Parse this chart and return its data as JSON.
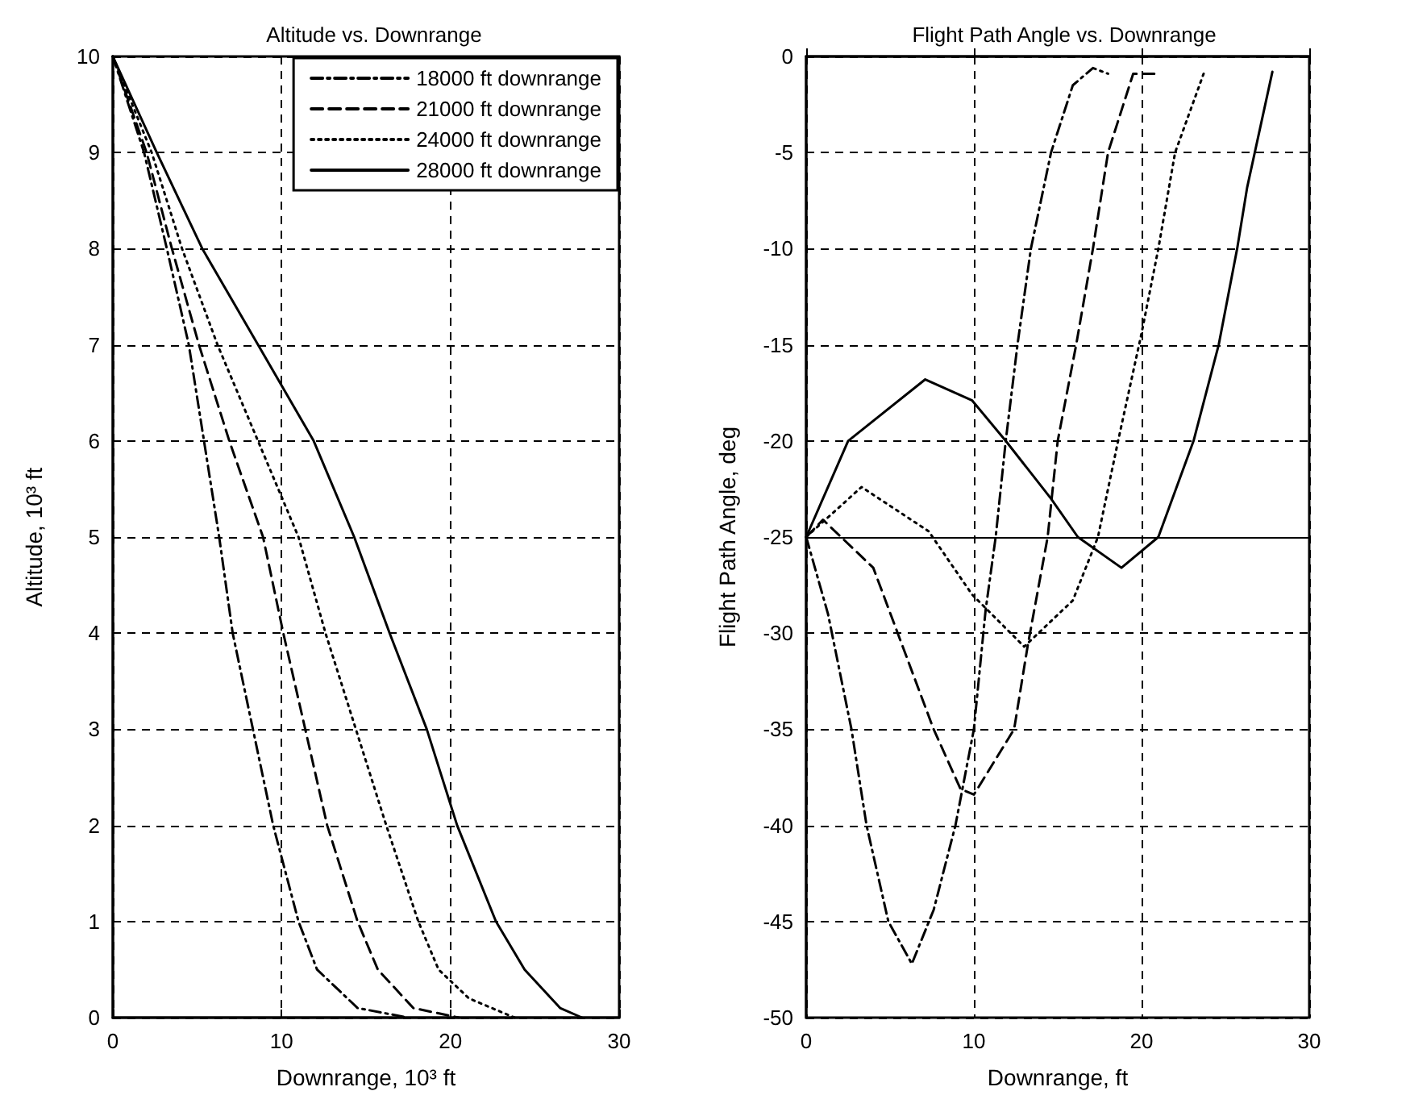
{
  "chart_data": [
    {
      "type": "line",
      "title": "Altitude vs. Downrange",
      "xlabel": "Downrange, 10³ ft",
      "ylabel": "Altitude, 10³ ft",
      "xlim": [
        0,
        30
      ],
      "xticks": [
        0,
        10,
        20,
        30
      ],
      "ylim": [
        0,
        10
      ],
      "yticks": [
        0,
        1,
        2,
        3,
        4,
        5,
        6,
        7,
        8,
        9,
        10
      ],
      "grid": true,
      "legend": "top right",
      "marker": "none",
      "series": [
        {
          "name": "18000 ft downrange",
          "color": "#000000",
          "line_style": "dashdot",
          "x": [
            0,
            1.85,
            3.2,
            4.5,
            5.4,
            6.3,
            7.1,
            8.3,
            9.5,
            11.0,
            12.1,
            14.5,
            17.5
          ],
          "values": [
            10,
            9,
            8,
            7,
            6,
            5,
            4,
            3,
            2,
            1,
            0.5,
            0.1,
            0
          ]
        },
        {
          "name": "21000 ft downrange",
          "color": "#000000",
          "line_style": "dashed",
          "x": [
            0,
            2.0,
            3.5,
            5.1,
            6.9,
            8.9,
            10.1,
            11.4,
            12.7,
            14.5,
            15.7,
            17.8,
            20.5
          ],
          "values": [
            10,
            9,
            8,
            7,
            6,
            5,
            4,
            3,
            2,
            1,
            0.5,
            0.1,
            0
          ]
        },
        {
          "name": "24000 ft downrange",
          "color": "#000000",
          "line_style": "dotted",
          "x": [
            0,
            2.3,
            4.1,
            6.2,
            8.6,
            11.0,
            12.6,
            14.4,
            16.2,
            18.1,
            19.3,
            21.1,
            23.8
          ],
          "values": [
            10,
            9,
            8,
            7,
            6,
            5,
            4,
            3,
            2,
            1,
            0.5,
            0.2,
            0
          ]
        },
        {
          "name": "28000 ft downrange",
          "color": "#000000",
          "line_style": "solid",
          "x": [
            0,
            2.6,
            5.3,
            8.6,
            11.9,
            14.3,
            16.4,
            18.6,
            20.4,
            22.7,
            24.4,
            26.5,
            27.8
          ],
          "values": [
            10,
            9,
            8,
            7,
            6,
            5,
            4,
            3,
            2,
            1,
            0.5,
            0.1,
            0
          ]
        }
      ]
    },
    {
      "type": "line",
      "title": "Flight Path Angle vs. Downrange",
      "xlabel": "Downrange, ft",
      "ylabel": "Flight Path Angle, deg",
      "xlim": [
        0,
        30
      ],
      "xticks": [
        0,
        10,
        20,
        30
      ],
      "ylim": [
        -50,
        0
      ],
      "yticks": [
        -50,
        -45,
        -40,
        -35,
        -30,
        -25,
        -20,
        -15,
        -10,
        -5,
        0
      ],
      "grid": true,
      "marker": "none",
      "ref_lines": [
        {
          "axis": "y",
          "value": -25,
          "color": "#000000",
          "line_style": "solid"
        }
      ],
      "series": [
        {
          "color": "#000000",
          "line_style": "dashdot",
          "x": [
            0,
            1.3,
            2.7,
            3.6,
            4.9,
            6.3,
            7.6,
            8.9,
            10.0,
            10.7,
            11.3,
            11.9,
            12.6,
            13.4,
            14.6,
            15.9,
            17.1,
            18.0
          ],
          "values": [
            -25,
            -29,
            -35,
            -40,
            -45,
            -47.2,
            -44.4,
            -40,
            -35,
            -28.8,
            -25,
            -20,
            -15,
            -10,
            -5,
            -1.5,
            -0.6,
            -0.9
          ]
        },
        {
          "color": "#000000",
          "line_style": "dashed",
          "x": [
            0,
            1.0,
            4.0,
            5.8,
            7.6,
            9.2,
            10.0,
            12.4,
            13.2,
            14.4,
            15.0,
            16.1,
            17.1,
            18.0,
            19.5,
            21.0
          ],
          "values": [
            -25,
            -24.1,
            -26.6,
            -30.8,
            -35,
            -38.1,
            -38.4,
            -35,
            -30.7,
            -25,
            -20,
            -15,
            -10,
            -5,
            -0.9,
            -0.9
          ]
        },
        {
          "color": "#000000",
          "line_style": "dotted",
          "x": [
            0,
            3.3,
            7.3,
            9.9,
            13.0,
            15.9,
            17.4,
            18.6,
            20.0,
            21.0,
            22.0,
            23.7
          ],
          "values": [
            -25,
            -22.4,
            -24.7,
            -28,
            -30.7,
            -28.3,
            -25,
            -20,
            -14.4,
            -10,
            -5,
            -0.9
          ]
        },
        {
          "color": "#000000",
          "line_style": "solid",
          "x": [
            0,
            2.5,
            7.1,
            9.9,
            11.9,
            14.6,
            16.2,
            18.8,
            21.0,
            23.1,
            24.6,
            25.7,
            26.3,
            27.8
          ],
          "values": [
            -25,
            -20,
            -16.8,
            -17.9,
            -20,
            -23,
            -25,
            -26.6,
            -25,
            -20,
            -15,
            -10,
            -6.8,
            -0.8
          ]
        }
      ]
    }
  ]
}
